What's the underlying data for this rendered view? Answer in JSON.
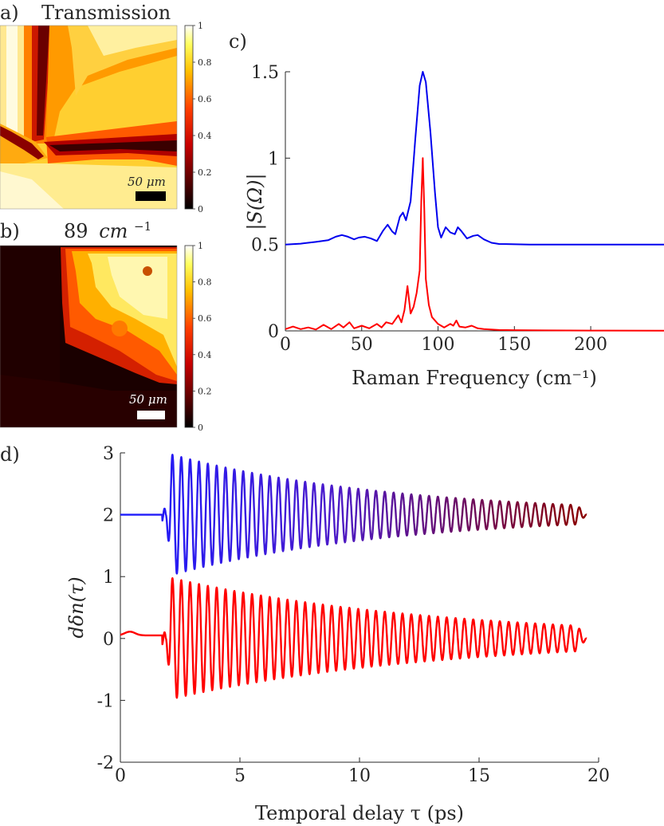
{
  "panels": {
    "a": {
      "letter": "a)",
      "title": "Transmission",
      "scalebar": {
        "label": "50 μm",
        "color": "#000000"
      },
      "colorbar": {
        "ticks": [
          "0",
          "0.2",
          "0.4",
          "0.6",
          "0.8",
          "1"
        ],
        "range": [
          0,
          1
        ],
        "colormap": "hot"
      }
    },
    "b": {
      "letter": "b)",
      "title_main": "89",
      "title_unit": "cm",
      "title_exp": "−1",
      "scalebar": {
        "label": "50 μm",
        "color": "#ffffff"
      },
      "colorbar": {
        "ticks": [
          "0",
          "0.2",
          "0.4",
          "0.6",
          "0.8",
          "1"
        ],
        "range": [
          0,
          1
        ],
        "colormap": "hot"
      }
    },
    "c": {
      "letter": "c)"
    },
    "d": {
      "letter": "d)"
    }
  },
  "chart_data": [
    {
      "panel": "c",
      "type": "line",
      "ylabel": "|S(Ω)|",
      "xlabel": "Raman Frequency (cm⁻¹)",
      "xlim": [
        0,
        248
      ],
      "ylim": [
        0,
        1.5
      ],
      "xticks": [
        0,
        50,
        100,
        150,
        200
      ],
      "yticks": [
        0,
        0.5,
        1,
        1.5
      ],
      "ytick_labels": [
        "0",
        "0.5",
        "1",
        "1.5"
      ],
      "grid": false,
      "series": [
        {
          "color": "#0000ee",
          "baseline": 0.5,
          "points": [
            [
              0,
              0.5
            ],
            [
              10,
              0.505
            ],
            [
              20,
              0.515
            ],
            [
              28,
              0.525
            ],
            [
              33,
              0.545
            ],
            [
              37,
              0.555
            ],
            [
              41,
              0.545
            ],
            [
              45,
              0.53
            ],
            [
              48,
              0.54
            ],
            [
              52,
              0.545
            ],
            [
              56,
              0.535
            ],
            [
              60,
              0.52
            ],
            [
              64,
              0.58
            ],
            [
              67,
              0.615
            ],
            [
              70,
              0.575
            ],
            [
              72,
              0.56
            ],
            [
              75,
              0.66
            ],
            [
              77,
              0.685
            ],
            [
              79,
              0.64
            ],
            [
              82,
              0.75
            ],
            [
              85,
              1.1
            ],
            [
              88,
              1.42
            ],
            [
              90,
              1.5
            ],
            [
              92,
              1.44
            ],
            [
              95,
              1.15
            ],
            [
              98,
              0.8
            ],
            [
              100,
              0.6
            ],
            [
              102,
              0.54
            ],
            [
              105,
              0.6
            ],
            [
              108,
              0.57
            ],
            [
              111,
              0.56
            ],
            [
              113,
              0.6
            ],
            [
              115,
              0.58
            ],
            [
              119,
              0.535
            ],
            [
              123,
              0.55
            ],
            [
              126,
              0.555
            ],
            [
              130,
              0.53
            ],
            [
              135,
              0.51
            ],
            [
              140,
              0.503
            ],
            [
              160,
              0.5
            ],
            [
              248,
              0.5
            ]
          ]
        },
        {
          "color": "#ff0000",
          "baseline": 0.0,
          "points": [
            [
              0,
              0.01
            ],
            [
              5,
              0.025
            ],
            [
              10,
              0.01
            ],
            [
              15,
              0.02
            ],
            [
              20,
              0.008
            ],
            [
              25,
              0.035
            ],
            [
              30,
              0.01
            ],
            [
              35,
              0.04
            ],
            [
              38,
              0.02
            ],
            [
              42,
              0.05
            ],
            [
              45,
              0.015
            ],
            [
              50,
              0.03
            ],
            [
              55,
              0.015
            ],
            [
              60,
              0.04
            ],
            [
              63,
              0.02
            ],
            [
              66,
              0.05
            ],
            [
              70,
              0.04
            ],
            [
              74,
              0.09
            ],
            [
              76,
              0.05
            ],
            [
              78,
              0.12
            ],
            [
              80,
              0.26
            ],
            [
              82,
              0.1
            ],
            [
              84,
              0.14
            ],
            [
              86,
              0.22
            ],
            [
              88,
              0.35
            ],
            [
              89,
              0.75
            ],
            [
              90,
              1.0
            ],
            [
              91,
              0.7
            ],
            [
              92,
              0.3
            ],
            [
              94,
              0.15
            ],
            [
              96,
              0.08
            ],
            [
              100,
              0.04
            ],
            [
              104,
              0.02
            ],
            [
              108,
              0.04
            ],
            [
              110,
              0.03
            ],
            [
              112,
              0.06
            ],
            [
              114,
              0.025
            ],
            [
              118,
              0.02
            ],
            [
              122,
              0.03
            ],
            [
              126,
              0.015
            ],
            [
              130,
              0.01
            ],
            [
              140,
              0.005
            ],
            [
              150,
              0.004
            ],
            [
              170,
              0.003
            ],
            [
              200,
              0.002
            ],
            [
              248,
              0.001
            ]
          ]
        }
      ]
    },
    {
      "panel": "d",
      "type": "line",
      "ylabel": "dδn(τ)",
      "xlabel": "Temporal delay τ (ps)",
      "xlim": [
        0,
        20
      ],
      "ylim": [
        -2,
        3
      ],
      "xticks": [
        0,
        5,
        10,
        15,
        20
      ],
      "yticks": [
        -2,
        -1,
        0,
        1,
        2,
        3
      ],
      "ytick_labels": [
        "-2",
        "-1",
        "0",
        "1",
        "2",
        "3"
      ],
      "grid": false,
      "series": [
        {
          "gradient": [
            "#1a1aff",
            "#8b0000"
          ],
          "offset": 2,
          "onset_ps": 1.9,
          "end_ps": 19.5,
          "start_amplitude": 1.0,
          "end_amplitude": 0.15,
          "period_ps": 0.37,
          "pre_onset_level": 2.0
        },
        {
          "color": "#ff0000",
          "offset": 0,
          "onset_ps": 1.9,
          "end_ps": 19.5,
          "start_amplitude": 1.0,
          "end_amplitude": 0.2,
          "period_ps": 0.37,
          "pre_onset_level": 0.05
        }
      ]
    }
  ]
}
